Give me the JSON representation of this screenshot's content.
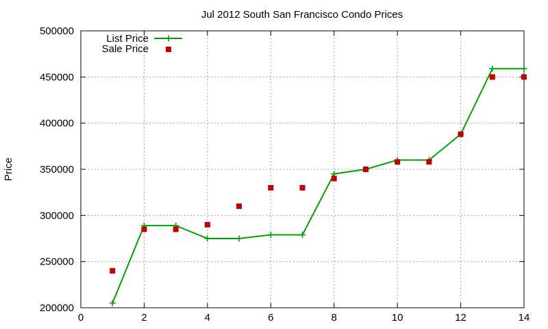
{
  "chart_data": {
    "type": "line",
    "title": "Jul 2012 South San Francisco Condo Prices",
    "xlabel": "",
    "ylabel": "Price",
    "xlim": [
      0,
      14
    ],
    "ylim": [
      200000,
      500000
    ],
    "xticks": [
      0,
      2,
      4,
      6,
      8,
      10,
      12,
      14
    ],
    "yticks": [
      200000,
      250000,
      300000,
      350000,
      400000,
      450000,
      500000
    ],
    "grid": true,
    "legend_position": "top-left",
    "series": [
      {
        "name": "List Price",
        "style": "line+cross",
        "color": "#00a000",
        "points": [
          [
            1,
            205000
          ],
          [
            2,
            289000
          ],
          [
            3,
            289000
          ],
          [
            4,
            275000
          ],
          [
            5,
            275000
          ],
          [
            6,
            279000
          ],
          [
            7,
            279000
          ],
          [
            8,
            345000
          ],
          [
            9,
            350000
          ],
          [
            10,
            360000
          ],
          [
            11,
            360000
          ],
          [
            12,
            388000
          ],
          [
            13,
            459000
          ],
          [
            14,
            459000
          ]
        ]
      },
      {
        "name": "Sale Price",
        "style": "square",
        "color": "#c00000",
        "points": [
          [
            1,
            240000
          ],
          [
            2,
            285000
          ],
          [
            3,
            285000
          ],
          [
            4,
            290000
          ],
          [
            5,
            310000
          ],
          [
            6,
            330000
          ],
          [
            7,
            330000
          ],
          [
            8,
            340000
          ],
          [
            9,
            350000
          ],
          [
            10,
            358000
          ],
          [
            11,
            358000
          ],
          [
            12,
            388000
          ],
          [
            13,
            450000
          ],
          [
            14,
            450000
          ]
        ]
      }
    ]
  }
}
